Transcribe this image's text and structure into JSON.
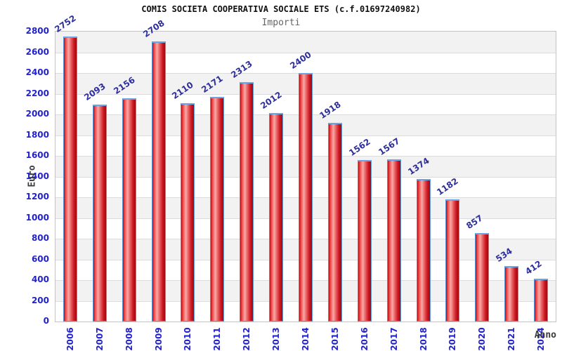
{
  "header": {
    "title": "COMIS SOCIETA COOPERATIVA SOCIALE ETS (c.f.01697240982)",
    "subtitle": "Importi"
  },
  "chart_data": {
    "type": "bar",
    "title": "COMIS SOCIETA COOPERATIVA SOCIALE ETS (c.f.01697240982)",
    "subtitle": "Importi",
    "xlabel": "Anno",
    "ylabel": "Euro",
    "categories": [
      "2006",
      "2007",
      "2008",
      "2009",
      "2010",
      "2011",
      "2012",
      "2013",
      "2014",
      "2015",
      "2016",
      "2017",
      "2018",
      "2019",
      "2020",
      "2021",
      "2024"
    ],
    "values": [
      2752,
      2093,
      2156,
      2708,
      2110,
      2171,
      2313,
      2012,
      2400,
      1918,
      1562,
      1567,
      1374,
      1182,
      857,
      534,
      412
    ],
    "ylim": [
      0,
      2800
    ],
    "ytick_step": 200,
    "legend": "none",
    "grid": "horizontal gridlines with alternating gray/white bands",
    "value_labels": "above bars, rotated",
    "colors": {
      "tick_label": "#2222cc",
      "value_label": "#2e2e9d",
      "bar_border": "#5b99dd",
      "bar_fill_dark": "#b00c13",
      "bar_fill_light": "#f8aaa8",
      "band_gray": "#f2f2f2",
      "band_white": "#ffffff",
      "gridline": "#dcdcdc",
      "plot_border": "#c4c4c4",
      "title_color": "#111111",
      "subtitle_color": "#646464",
      "axis_title_color": "#3a3a3a"
    }
  }
}
